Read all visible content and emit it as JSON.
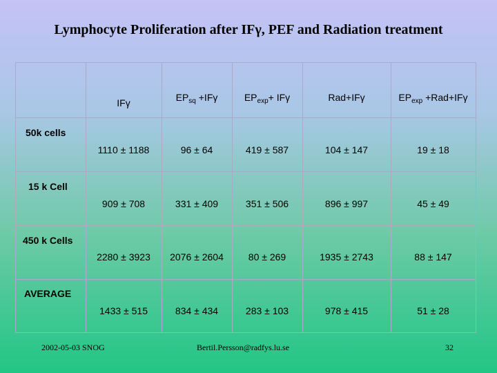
{
  "title": "Lymphocyte Proliferation after IFγ,  PEF and Radiation treatment",
  "headers": [
    {
      "main": "IFγ",
      "sub": "",
      "suffix": ""
    },
    {
      "main": "EP",
      "sub": "sq",
      "suffix": " +IFγ"
    },
    {
      "main": "EP",
      "sub": "exp",
      "suffix": "+ IFγ"
    },
    {
      "main": "Rad+IFγ",
      "sub": "",
      "suffix": ""
    },
    {
      "main": "EP",
      "sub": "exp",
      "suffix": " +Rad+IFγ"
    }
  ],
  "rows": [
    {
      "label": "50k cells",
      "values": [
        "1110 ± 1188",
        "96 ± 64",
        "419 ± 587",
        "104 ± 147",
        "19 ± 18"
      ]
    },
    {
      "label": "15 k Cell",
      "values": [
        "909 ± 708",
        "331 ± 409",
        "351 ±  506",
        "896 ± 997",
        "45 ± 49"
      ]
    },
    {
      "label": "450 k Cells",
      "values": [
        "2280 ± 3923",
        "2076 ± 2604",
        "80 ± 269",
        "1935 ± 2743",
        "88 ± 147"
      ]
    },
    {
      "label": "AVERAGE",
      "values": [
        "1433 ± 515",
        "834 ± 434",
        "283 ± 103",
        "978 ± 415",
        "51 ± 28"
      ]
    }
  ],
  "footer": {
    "date": "2002-05-03 SNOG",
    "email": "Bertil.Persson@radfys.lu.se",
    "page": "32"
  }
}
